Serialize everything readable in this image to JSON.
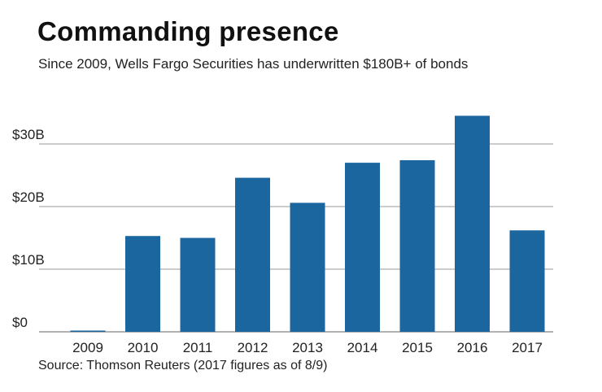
{
  "chart_data": {
    "type": "bar",
    "title": "Commanding presence",
    "subtitle": "Since 2009, Wells Fargo Securities has underwritten $180B+ of bonds",
    "source": "Source: Thomson Reuters (2017 figures as of 8/9)",
    "categories": [
      "2009",
      "2010",
      "2011",
      "2012",
      "2013",
      "2014",
      "2015",
      "2016",
      "2017"
    ],
    "values": [
      0.2,
      15.3,
      15.0,
      24.6,
      20.6,
      27.0,
      27.4,
      34.5,
      16.2
    ],
    "unit": "billion USD",
    "yticks": [
      0,
      10,
      20,
      30
    ],
    "ytick_labels": [
      "$0",
      "$10B",
      "$20B",
      "$30B"
    ],
    "ylim": [
      0,
      35
    ],
    "grid": true,
    "bar_color": "#1c66a0"
  }
}
